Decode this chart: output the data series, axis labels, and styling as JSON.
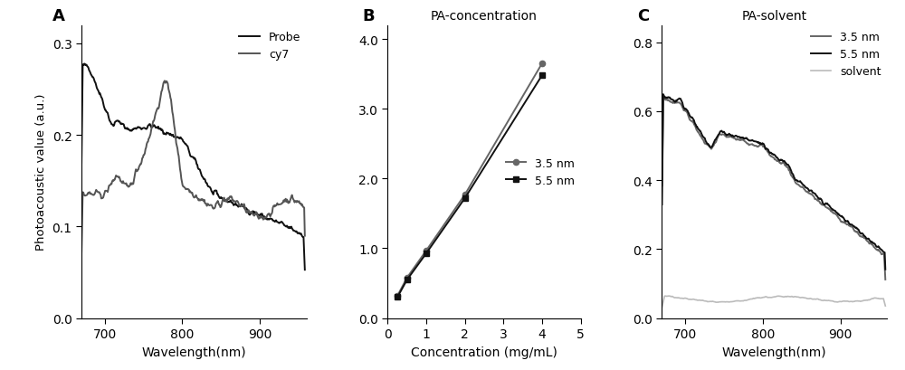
{
  "panel_A": {
    "label": "A",
    "ylabel": "Photoacoustic value (a.u.)",
    "xlabel": "Wavelength(nm)",
    "xlim": [
      670,
      960
    ],
    "ylim": [
      0.0,
      0.32
    ],
    "yticks": [
      0.0,
      0.1,
      0.2,
      0.3
    ],
    "xticks": [
      700,
      800,
      900
    ],
    "legend": [
      "Probe",
      "cy7"
    ],
    "probe_color": "#111111",
    "cy7_color": "#555555"
  },
  "panel_B": {
    "label": "B",
    "title": "PA-concentration",
    "xlabel": "Concentration (mg/mL)",
    "xlim": [
      0,
      5
    ],
    "ylim": [
      0.0,
      4.2
    ],
    "yticks": [
      0.0,
      1.0,
      2.0,
      3.0,
      4.0
    ],
    "xticks": [
      0,
      1,
      2,
      3,
      4,
      5
    ],
    "nm35_x": [
      0.25,
      0.5,
      1.0,
      2.0,
      4.0
    ],
    "nm35_y": [
      0.32,
      0.58,
      0.97,
      1.77,
      3.65
    ],
    "nm55_x": [
      0.25,
      0.5,
      1.0,
      2.0,
      4.0
    ],
    "nm55_y": [
      0.3,
      0.55,
      0.93,
      1.72,
      3.48
    ],
    "nm35_color": "#666666",
    "nm55_color": "#111111",
    "legend": [
      "3.5 nm",
      "5.5 nm"
    ]
  },
  "panel_C": {
    "label": "C",
    "title": "PA-solvent",
    "xlabel": "Wavelength(nm)",
    "xlim": [
      670,
      960
    ],
    "ylim": [
      0.0,
      0.85
    ],
    "yticks": [
      0.0,
      0.2,
      0.4,
      0.6,
      0.8
    ],
    "xticks": [
      700,
      800,
      900
    ],
    "nm35_color": "#666666",
    "nm55_color": "#111111",
    "solvent_color": "#bbbbbb",
    "legend": [
      "3.5 nm",
      "5.5 nm",
      "solvent"
    ]
  }
}
